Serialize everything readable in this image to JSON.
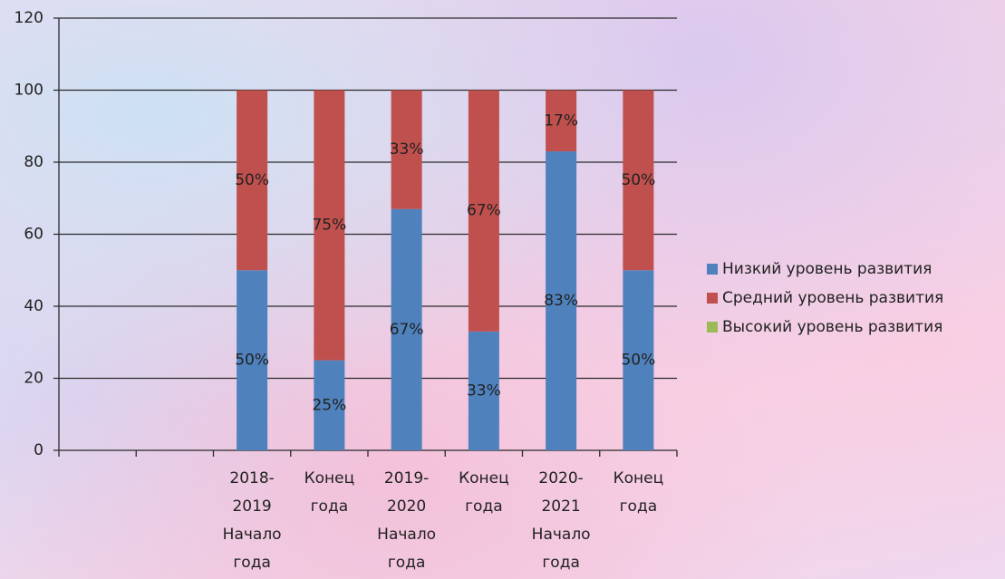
{
  "chart_data": {
    "type": "stacked_bar",
    "categories": [
      null,
      null,
      [
        "2018-",
        "2019",
        "Начало",
        "года"
      ],
      [
        "Конец",
        "года"
      ],
      [
        "2019-",
        "2020",
        "Начало",
        "года"
      ],
      [
        "Конец",
        "года"
      ],
      [
        "2020-",
        "2021",
        "Начало",
        "года"
      ],
      [
        "Конец",
        "года"
      ]
    ],
    "series": [
      {
        "name": "Низкий уровень развития",
        "color": "#4f81bd",
        "values": [
          null,
          null,
          50,
          25,
          67,
          33,
          83,
          50
        ],
        "value_labels": [
          null,
          null,
          "50%",
          "25%",
          "67%",
          "33%",
          "83%",
          "50%"
        ]
      },
      {
        "name": "Средний уровень развития",
        "color": "#c0504d",
        "values": [
          null,
          null,
          50,
          75,
          33,
          67,
          17,
          50
        ],
        "value_labels": [
          null,
          null,
          "50%",
          "75%",
          "33%",
          "67%",
          "17%",
          "50%"
        ]
      },
      {
        "name": "Высокий уровень развития",
        "color": "#9bbb59",
        "values": [
          null,
          null,
          null,
          null,
          null,
          null,
          null,
          null
        ]
      }
    ],
    "ylim": [
      0,
      120
    ],
    "yticks": [
      0,
      20,
      40,
      60,
      80,
      100,
      120
    ],
    "grid": true,
    "legend": "right"
  }
}
